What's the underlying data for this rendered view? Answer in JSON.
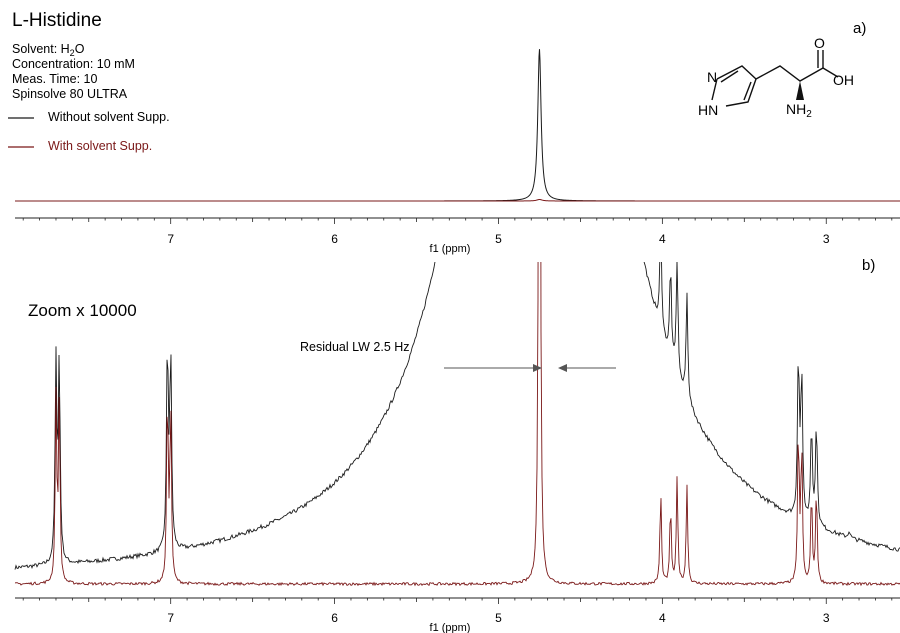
{
  "title": "L-Histidine",
  "info": [
    {
      "key": "solvent",
      "prefix": "Solvent: H",
      "sub": "2",
      "suffix": "O"
    },
    {
      "key": "conc",
      "text": "Concentration: 10 mM"
    },
    {
      "key": "meas",
      "text": "Meas. Time: 10"
    },
    {
      "key": "instr",
      "text": "Spinsolve 80 ULTRA"
    }
  ],
  "legend": [
    {
      "name": "Without solvent Supp.",
      "color": "#1a1a1a"
    },
    {
      "name": "With solvent Supp.",
      "color": "#7a1818"
    }
  ],
  "molecule": {
    "n_label": "N",
    "hn_label": "HN",
    "o_label": "O",
    "oh_label": "OH",
    "nh2_prefix": "NH",
    "nh2_sub": "2"
  },
  "colors": {
    "without": "#1a1a1a",
    "with": "#7a1818",
    "arrow": "#555555"
  },
  "chart_data": [
    {
      "panel_label": "a)",
      "type": "line",
      "xlabel": "f1 (ppm)",
      "xlim": [
        7.95,
        2.55
      ],
      "x_reversed": true,
      "xticks": [
        "7",
        "6",
        "5",
        "4",
        "3"
      ],
      "xtick_values": [
        7,
        6,
        5,
        4,
        3
      ],
      "grid": false,
      "legend_position": "top-left",
      "series": [
        {
          "name": "Without solvent Supp.",
          "peaks": [
            {
              "ppm": 4.75,
              "height": 1.0,
              "width": 0.012
            }
          ]
        },
        {
          "name": "With solvent Supp.",
          "peaks": [
            {
              "ppm": 4.75,
              "height": 0.01,
              "width": 0.02
            }
          ]
        }
      ]
    },
    {
      "panel_label": "b)",
      "type": "line",
      "xlabel": "f1 (ppm)",
      "xlim": [
        7.95,
        2.55
      ],
      "x_reversed": true,
      "xticks": [
        "7",
        "6",
        "5",
        "4",
        "3"
      ],
      "xtick_values": [
        7,
        6,
        5,
        4,
        3
      ],
      "grid": false,
      "annotations": [
        "Zoom x 10000",
        "Residual LW 2.5 Hz"
      ],
      "series": [
        {
          "name": "Without solvent Supp.",
          "peaks": [
            {
              "ppm": 7.7,
              "height": 0.86
            },
            {
              "ppm": 7.68,
              "height": 0.86
            },
            {
              "ppm": 7.02,
              "height": 0.88
            },
            {
              "ppm": 7.0,
              "height": 0.84
            },
            {
              "ppm": 4.75,
              "height": 6.0
            },
            {
              "ppm": 4.01,
              "height": 0.46
            },
            {
              "ppm": 3.95,
              "height": 0.4
            },
            {
              "ppm": 3.91,
              "height": 0.5
            },
            {
              "ppm": 3.85,
              "height": 0.46
            },
            {
              "ppm": 3.17,
              "height": 0.7
            },
            {
              "ppm": 3.15,
              "height": 0.62
            },
            {
              "ppm": 3.09,
              "height": 0.42
            },
            {
              "ppm": 3.06,
              "height": 0.44
            },
            {
              "ppm": 2.86,
              "height": 0.03
            }
          ]
        },
        {
          "name": "With solvent Supp.",
          "peaks": [
            {
              "ppm": 7.7,
              "height": 0.8
            },
            {
              "ppm": 7.68,
              "height": 0.8
            },
            {
              "ppm": 7.02,
              "height": 0.83
            },
            {
              "ppm": 7.0,
              "height": 0.78
            },
            {
              "ppm": 4.75,
              "height": 6.0
            },
            {
              "ppm": 4.01,
              "height": 0.4
            },
            {
              "ppm": 3.95,
              "height": 0.34
            },
            {
              "ppm": 3.91,
              "height": 0.46
            },
            {
              "ppm": 3.85,
              "height": 0.43
            },
            {
              "ppm": 3.17,
              "height": 0.68
            },
            {
              "ppm": 3.15,
              "height": 0.6
            },
            {
              "ppm": 3.09,
              "height": 0.4
            },
            {
              "ppm": 3.06,
              "height": 0.42
            }
          ]
        }
      ]
    }
  ]
}
